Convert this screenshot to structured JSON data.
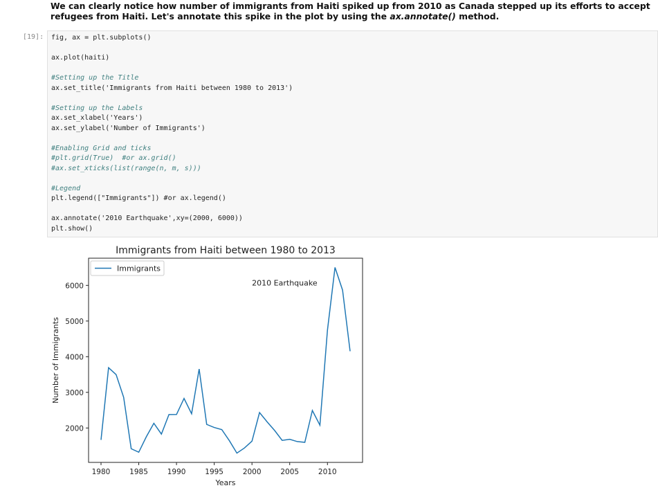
{
  "markdown": {
    "parts": [
      "We can clearly notice how number of immigrants from Haiti spiked up from 2010 as Canada stepped up its efforts to accept refugees from Haiti. Let's annotate this spike in the plot by using the ",
      "ax.annotate()",
      " method."
    ]
  },
  "cell": {
    "prompt": "[19]:",
    "code_blocks": [
      [
        "fig, ax = plt.subplots()"
      ],
      [
        "ax.plot(haiti)"
      ],
      [
        "#Setting up the Title",
        "ax.set_title('Immigrants from Haiti between 1980 to 2013')"
      ],
      [
        "#Setting up the Labels",
        "ax.set_xlabel('Years')",
        "ax.set_ylabel('Number of Immigrants')"
      ],
      [
        "#Enabling Grid and ticks",
        "#plt.grid(True)  #or ax.grid()",
        "#ax.set_xticks(list(range(n, m, s)))"
      ],
      [
        "#Legend",
        "plt.legend([\"Immigrants\"]) #or ax.legend()"
      ],
      [
        "ax.annotate('2010 Earthquake',xy=(2000, 6000))",
        "plt.show()"
      ]
    ]
  },
  "chart_data": {
    "type": "line",
    "title": "Immigrants from Haiti between 1980 to 2013",
    "x_label": "Years",
    "y_label": "Number of Immigrants",
    "x": [
      1980,
      1981,
      1982,
      1983,
      1984,
      1985,
      1986,
      1987,
      1988,
      1989,
      1990,
      1991,
      1992,
      1993,
      1994,
      1995,
      1996,
      1997,
      1998,
      1999,
      2000,
      2001,
      2002,
      2003,
      2004,
      2005,
      2006,
      2007,
      2008,
      2009,
      2010,
      2011,
      2012,
      2013
    ],
    "series": [
      {
        "name": "Immigrants",
        "color": "#1f77b4",
        "values": [
          1666,
          3692,
          3498,
          2860,
          1418,
          1321,
          1753,
          2132,
          1829,
          2377,
          2379,
          2829,
          2399,
          3655,
          2100,
          2014,
          1955,
          1645,
          1295,
          1439,
          1631,
          2433,
          2174,
          1930,
          1652,
          1682,
          1619,
          1598,
          2491,
          2080,
          4744,
          6503,
          5868,
          4152
        ]
      }
    ],
    "xlim": [
      1978.35,
      2014.65
    ],
    "xticks": [
      1980,
      1985,
      1990,
      1995,
      2000,
      2005,
      2010
    ],
    "ylim": [
      1035,
      6763
    ],
    "yticks": [
      2000,
      3000,
      4000,
      5000,
      6000
    ],
    "legend": "upper left",
    "grid": false,
    "annotation": {
      "text": "2010 Earthquake",
      "xy": [
        2000,
        6000
      ]
    }
  }
}
